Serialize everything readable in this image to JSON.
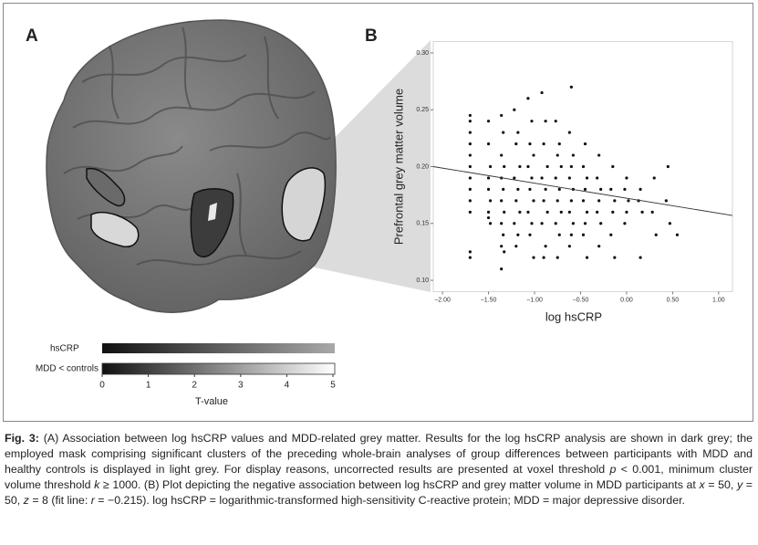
{
  "panels": {
    "a": "A",
    "b": "B"
  },
  "colorbar": {
    "rows": [
      "hsCRP",
      "MDD < controls"
    ],
    "ticks": [
      0,
      1,
      2,
      3,
      4,
      5
    ],
    "label": "T-value"
  },
  "chart_data": {
    "type": "scatter",
    "xlabel": "log hsCRP",
    "ylabel": "Prefrontal grey matter volume",
    "xlim": [
      -2.1,
      1.15
    ],
    "ylim": [
      0.09,
      0.31
    ],
    "xticks": [
      {
        "value": -2,
        "label": "−2.00"
      },
      {
        "value": -1.5,
        "label": "−1.50"
      },
      {
        "value": -1,
        "label": "−1.00"
      },
      {
        "value": -0.5,
        "label": "−0.50"
      },
      {
        "value": 0,
        "label": "0.00"
      },
      {
        "value": 0.5,
        "label": "0.50"
      },
      {
        "value": 1,
        "label": "1.00"
      }
    ],
    "yticks": [
      {
        "value": 0.1,
        "label": "0.10"
      },
      {
        "value": 0.15,
        "label": "0.15"
      },
      {
        "value": 0.2,
        "label": "0.20"
      },
      {
        "value": 0.25,
        "label": "0.25"
      },
      {
        "value": 0.3,
        "label": "0.30"
      }
    ],
    "color": "#111111",
    "fit_line": {
      "x": [
        -2.1,
        1.15
      ],
      "y": [
        0.2,
        0.157
      ]
    },
    "x": [
      -1.7,
      -1.7,
      -1.7,
      -1.7,
      -1.7,
      -1.7,
      -1.7,
      -1.7,
      -1.7,
      -1.7,
      -1.7,
      -1.7,
      -1.5,
      -1.5,
      -1.48,
      -1.5,
      -1.5,
      -1.48,
      -1.5,
      -1.5,
      -1.48,
      -1.36,
      -1.34,
      -1.36,
      -1.33,
      -1.36,
      -1.34,
      -1.36,
      -1.33,
      -1.36,
      -1.34,
      -1.36,
      -1.33,
      -1.36,
      -1.22,
      -1.18,
      -1.2,
      -1.16,
      -1.22,
      -1.18,
      -1.2,
      -1.16,
      -1.22,
      -1.18,
      -1.2,
      -1.07,
      -1.03,
      -1.05,
      -1.01,
      -1.07,
      -1.03,
      -1.05,
      -1.01,
      -1.07,
      -1.03,
      -1.05,
      -1.01,
      -0.92,
      -0.88,
      -0.9,
      -0.86,
      -0.92,
      -0.88,
      -0.9,
      -0.86,
      -0.92,
      -0.88,
      -0.9,
      -0.77,
      -0.73,
      -0.75,
      -0.71,
      -0.77,
      -0.73,
      -0.75,
      -0.71,
      -0.77,
      -0.73,
      -0.75,
      -0.6,
      -0.62,
      -0.58,
      -0.6,
      -0.62,
      -0.58,
      -0.6,
      -0.62,
      -0.58,
      -0.6,
      -0.62,
      -0.45,
      -0.47,
      -0.43,
      -0.45,
      -0.47,
      -0.43,
      -0.45,
      -0.47,
      -0.43,
      -0.3,
      -0.32,
      -0.28,
      -0.3,
      -0.32,
      -0.28,
      -0.3,
      -0.15,
      -0.17,
      -0.13,
      -0.15,
      -0.17,
      -0.13,
      0,
      -0.02,
      0.02,
      0,
      -0.02,
      0.15,
      0.13,
      0.17,
      0.15,
      0.3,
      0.28,
      0.32,
      0.45,
      0.43,
      0.47,
      0.55
    ],
    "values": [
      0.245,
      0.24,
      0.23,
      0.22,
      0.21,
      0.2,
      0.19,
      0.18,
      0.17,
      0.16,
      0.125,
      0.12,
      0.24,
      0.22,
      0.2,
      0.19,
      0.18,
      0.17,
      0.16,
      0.155,
      0.15,
      0.245,
      0.23,
      0.21,
      0.2,
      0.19,
      0.18,
      0.17,
      0.16,
      0.15,
      0.14,
      0.13,
      0.125,
      0.11,
      0.25,
      0.23,
      0.22,
      0.2,
      0.19,
      0.18,
      0.17,
      0.16,
      0.15,
      0.14,
      0.13,
      0.26,
      0.24,
      0.22,
      0.21,
      0.2,
      0.19,
      0.18,
      0.17,
      0.16,
      0.15,
      0.14,
      0.12,
      0.265,
      0.24,
      0.22,
      0.2,
      0.19,
      0.18,
      0.17,
      0.16,
      0.15,
      0.13,
      0.12,
      0.24,
      0.22,
      0.21,
      0.2,
      0.19,
      0.18,
      0.17,
      0.16,
      0.15,
      0.14,
      0.12,
      0.27,
      0.23,
      0.21,
      0.2,
      0.19,
      0.18,
      0.17,
      0.16,
      0.15,
      0.14,
      0.13,
      0.22,
      0.2,
      0.19,
      0.18,
      0.17,
      0.16,
      0.15,
      0.14,
      0.12,
      0.21,
      0.19,
      0.18,
      0.17,
      0.16,
      0.15,
      0.13,
      0.2,
      0.18,
      0.17,
      0.16,
      0.14,
      0.12,
      0.19,
      0.18,
      0.17,
      0.16,
      0.15,
      0.18,
      0.17,
      0.16,
      0.12,
      0.19,
      0.16,
      0.14,
      0.2,
      0.17,
      0.15,
      0.14
    ]
  },
  "caption": {
    "segments": [
      "Fig. 3:",
      " (A) Association between log hsCRP values and MDD-related grey matter. Results for the log hsCRP analysis are shown in dark grey; the employed mask comprising significant clusters of the preceding whole-brain analyses of group differences between participants with MDD and healthy controls is displayed in light grey. For display reasons, uncorrected results are presented at voxel threshold ",
      "p",
      " < 0.001, minimum cluster volume threshold ",
      "k",
      " ≥ 1000. (B) Plot depicting the negative association between log hsCRP and grey matter volume in MDD participants at ",
      "x",
      " = 50, ",
      "y",
      " = 50, ",
      "z",
      " = 8 (fit line: ",
      "r",
      " = −0.215). log hsCRP = logarithmic-transformed high-sensitivity C-reactive protein; MDD = major depressive disorder."
    ]
  }
}
